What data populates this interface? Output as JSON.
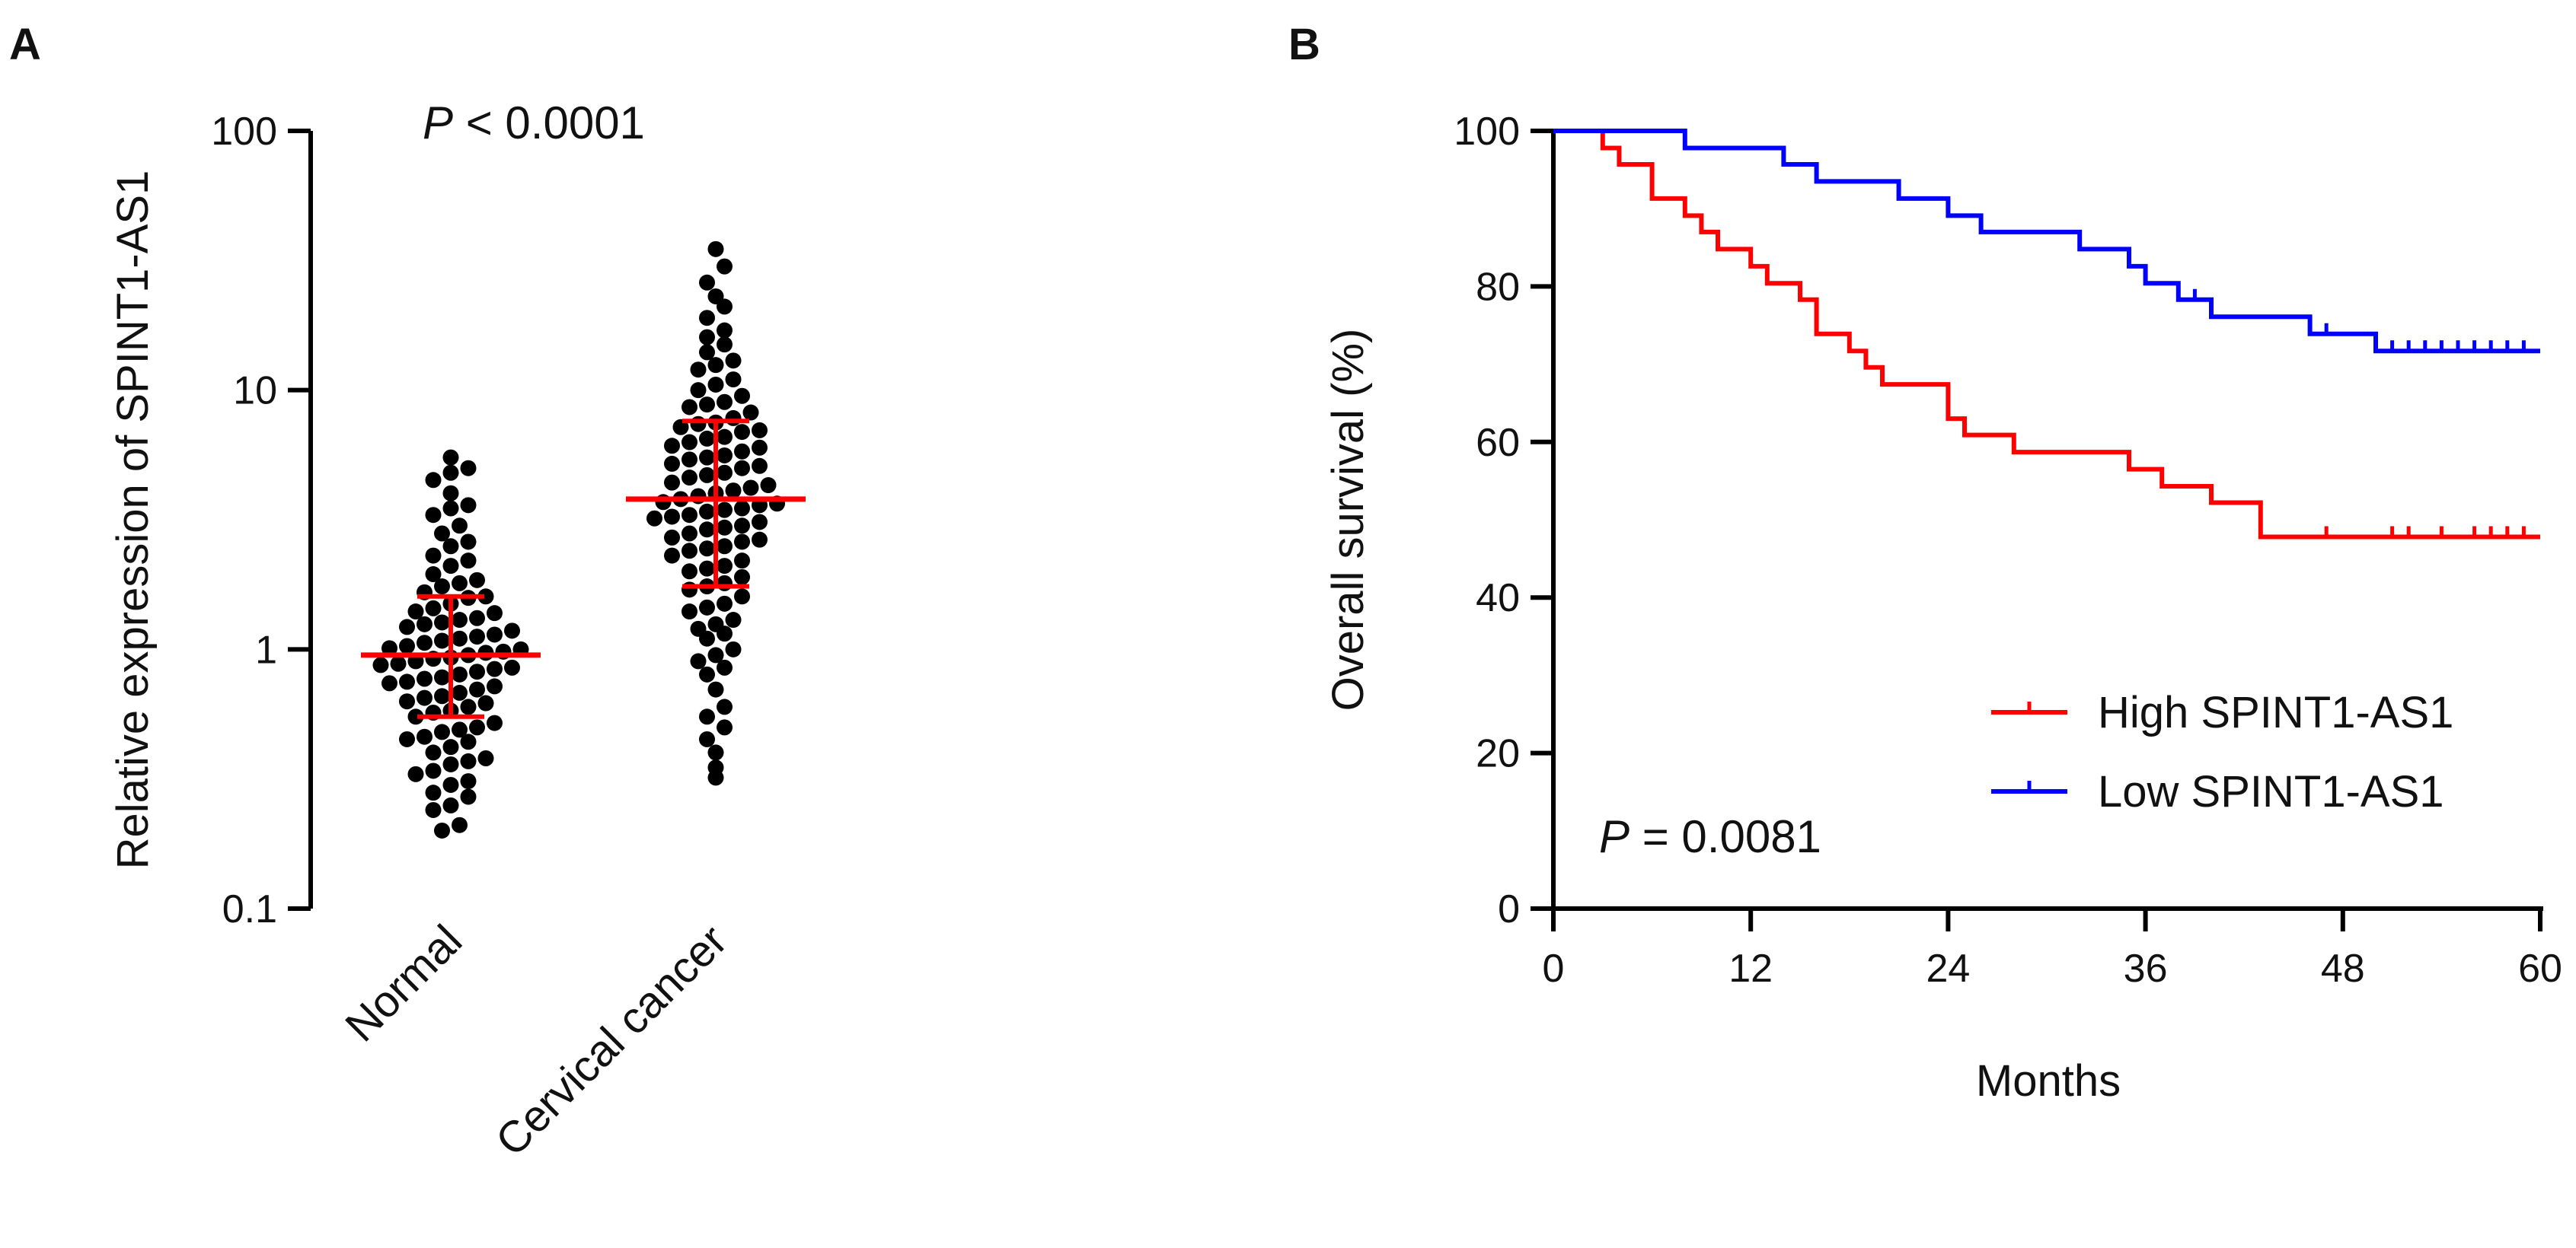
{
  "colors": {
    "high": "#ff0000",
    "low": "#0000ff",
    "points": "#000000",
    "summary": "#ff0000",
    "axis": "#000000"
  },
  "panels": {
    "a": {
      "label": "A"
    },
    "b": {
      "label": "B"
    }
  },
  "chart_data": [
    {
      "type": "scatter",
      "panel": "A",
      "title": "",
      "ylabel": "Relative expression of SPINT1-AS1",
      "xlabel": "",
      "yscale": "log",
      "ylim": [
        0.1,
        100
      ],
      "yticks": [
        0.1,
        1,
        10,
        100
      ],
      "ytick_labels": [
        "0.1",
        "1",
        "10",
        "100"
      ],
      "categories": [
        "Normal",
        "Cervical cancer"
      ],
      "annotation": {
        "italic": "P",
        "text": " < 0.0001"
      },
      "groups": [
        {
          "name": "Normal",
          "median": 0.95,
          "q1": 0.55,
          "q3": 1.6,
          "values": [
            0.2,
            0.21,
            0.24,
            0.25,
            0.27,
            0.28,
            0.3,
            0.31,
            0.33,
            0.34,
            0.36,
            0.38,
            0.4,
            0.42,
            0.44,
            0.46,
            0.48,
            0.5,
            0.52,
            0.55,
            0.57,
            0.6,
            0.62,
            0.65,
            0.68,
            0.7,
            0.72,
            0.75,
            0.78,
            0.8,
            0.82,
            0.85,
            0.88,
            0.9,
            0.92,
            0.95,
            0.97,
            1.0,
            1.03,
            1.06,
            1.1,
            1.14,
            1.18,
            1.22,
            1.27,
            1.32,
            1.38,
            1.44,
            1.5,
            1.58,
            1.66,
            1.75,
            1.85,
            1.95,
            2.1,
            2.3,
            2.5,
            2.8,
            3.0,
            3.3,
            3.6,
            4.0,
            4.5,
            5.0,
            5.5,
            0.37,
            0.45,
            0.58,
            0.66,
            0.74,
            0.84,
            0.93,
            1.01,
            1.12,
            1.25,
            1.4,
            1.6,
            1.8,
            2.2,
            2.6,
            3.5,
            4.8,
            0.49,
            0.63,
            0.77,
            0.87,
            0.98,
            1.08,
            1.3
          ]
        },
        {
          "name": "Cervical cancer",
          "median": 3.8,
          "q1": 1.75,
          "q3": 7.6,
          "values": [
            0.32,
            0.35,
            0.4,
            0.45,
            0.5,
            0.55,
            0.6,
            0.7,
            0.8,
            0.9,
            0.95,
            1.0,
            1.1,
            1.2,
            1.3,
            1.4,
            1.5,
            1.6,
            1.7,
            1.8,
            1.9,
            2.0,
            2.1,
            2.2,
            2.3,
            2.4,
            2.5,
            2.6,
            2.7,
            2.8,
            2.9,
            3.0,
            3.1,
            3.2,
            3.3,
            3.4,
            3.5,
            3.6,
            3.7,
            3.8,
            3.9,
            4.0,
            4.2,
            4.4,
            4.6,
            4.8,
            5.0,
            5.2,
            5.4,
            5.6,
            5.8,
            6.0,
            6.3,
            6.6,
            6.9,
            7.2,
            7.5,
            7.8,
            8.2,
            8.6,
            9.0,
            9.5,
            10.0,
            11.0,
            12.0,
            13.0,
            14.0,
            15.0,
            17.0,
            19.0,
            21.0,
            23.0,
            26.0,
            30.0,
            35.0,
            0.85,
            1.15,
            1.45,
            2.05,
            2.45,
            2.95,
            3.45,
            4.1,
            4.7,
            5.5,
            6.5,
            7.4,
            8.8,
            10.5,
            12.5,
            16.0,
            1.25,
            1.75,
            2.65,
            3.25,
            3.65,
            4.3,
            5.1,
            6.1,
            7.0
          ]
        }
      ]
    },
    {
      "type": "line",
      "subtype": "kaplan-meier",
      "panel": "B",
      "title": "",
      "xlabel": "Months",
      "ylabel": "Overall survival (%)",
      "xlim": [
        0,
        60
      ],
      "ylim": [
        0,
        100
      ],
      "xticks": [
        0,
        12,
        24,
        36,
        48,
        60
      ],
      "yticks": [
        0,
        20,
        40,
        60,
        80,
        100
      ],
      "annotation": {
        "italic": "P",
        "text": " = 0.0081"
      },
      "legend_position": "bottom-right",
      "series": [
        {
          "name": "High SPINT1-AS1",
          "color": "#ff0000",
          "steps": [
            [
              0,
              100
            ],
            [
              3,
              97.8
            ],
            [
              4,
              95.7
            ],
            [
              6,
              91.3
            ],
            [
              8,
              89.1
            ],
            [
              9,
              87
            ],
            [
              10,
              84.8
            ],
            [
              12,
              82.6
            ],
            [
              13,
              80.4
            ],
            [
              15,
              78.3
            ],
            [
              16,
              73.9
            ],
            [
              18,
              71.7
            ],
            [
              19,
              69.6
            ],
            [
              20,
              67.4
            ],
            [
              24,
              63
            ],
            [
              25,
              60.9
            ],
            [
              28,
              58.7
            ],
            [
              35,
              56.5
            ],
            [
              37,
              54.3
            ],
            [
              40,
              52.2
            ],
            [
              43,
              47.8
            ],
            [
              60,
              47.8
            ]
          ],
          "censored": [
            47,
            51,
            52,
            54,
            56,
            57,
            58,
            59
          ]
        },
        {
          "name": "Low SPINT1-AS1",
          "color": "#0000ff",
          "steps": [
            [
              0,
              100
            ],
            [
              8,
              97.8
            ],
            [
              14,
              95.7
            ],
            [
              16,
              93.5
            ],
            [
              21,
              91.3
            ],
            [
              24,
              89.1
            ],
            [
              26,
              87
            ],
            [
              32,
              84.8
            ],
            [
              35,
              82.6
            ],
            [
              36,
              80.4
            ],
            [
              38,
              78.3
            ],
            [
              40,
              76.1
            ],
            [
              46,
              73.9
            ],
            [
              50,
              71.7
            ],
            [
              60,
              71.7
            ]
          ],
          "censored": [
            39,
            47,
            51,
            52,
            53,
            54,
            55,
            56,
            57,
            58,
            59
          ]
        }
      ]
    }
  ]
}
